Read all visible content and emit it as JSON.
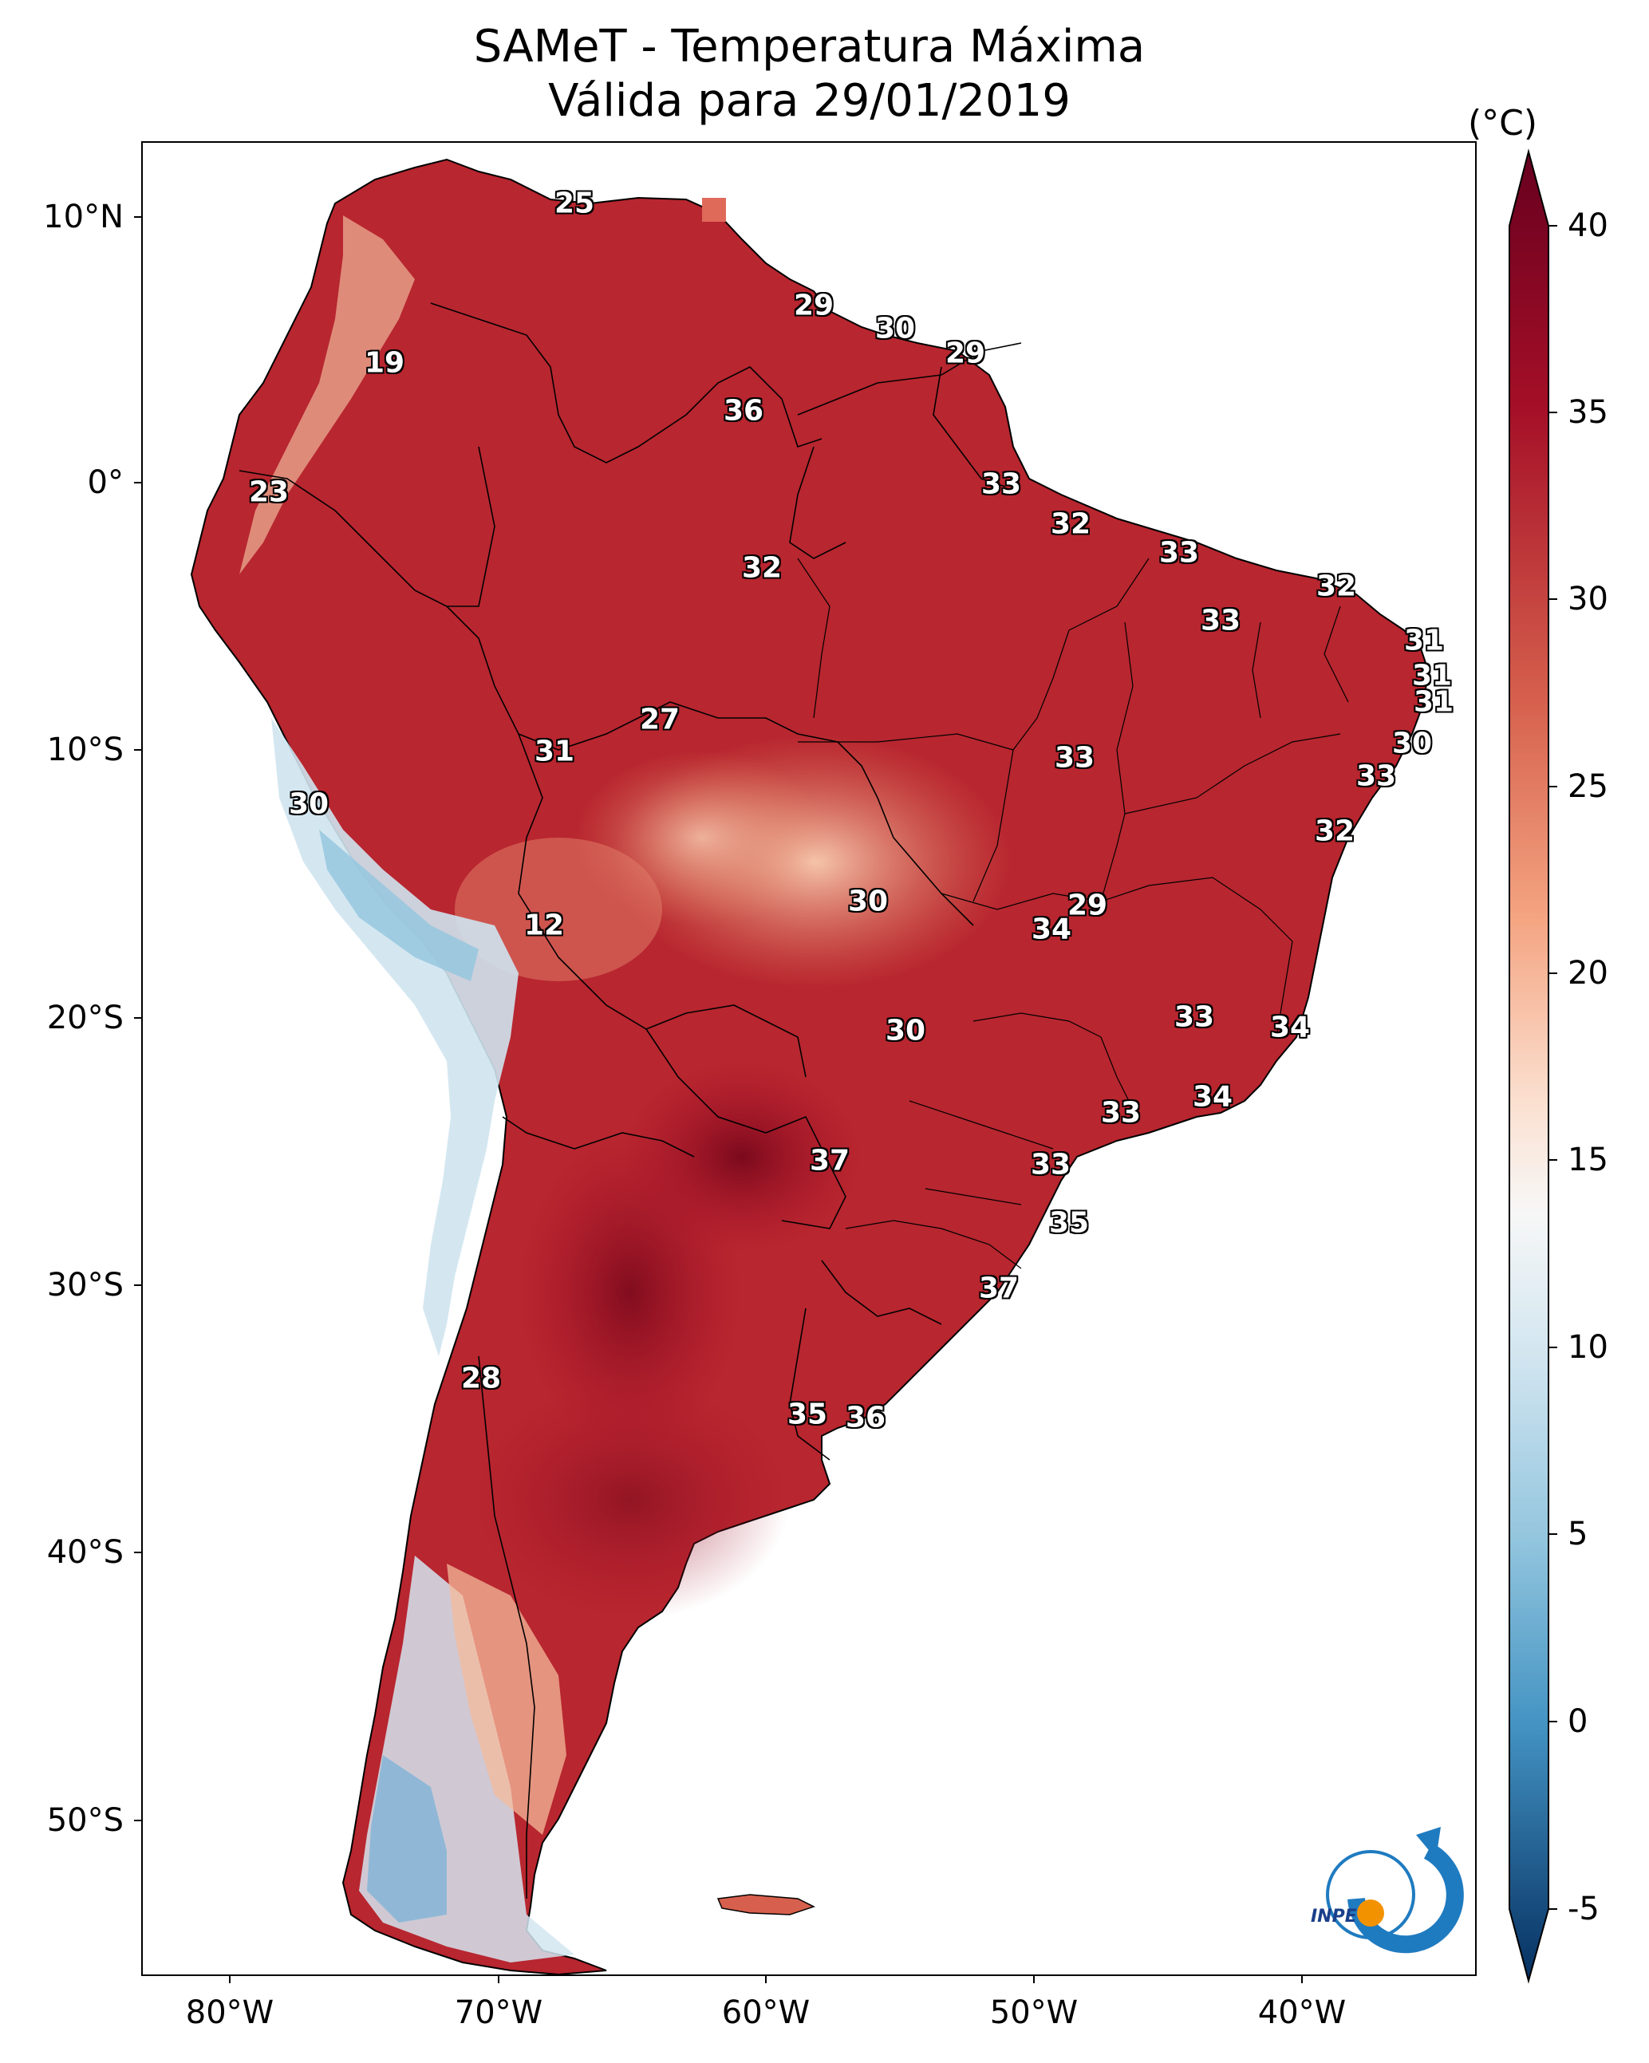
{
  "title": "SAMeT - Temperatura Máxima",
  "subtitle": "Válida para 29/01/2019",
  "colorbar": {
    "unit": "(°C)",
    "ticks": [
      "40",
      "35",
      "30",
      "25",
      "20",
      "15",
      "10",
      "5",
      "0",
      "-5"
    ]
  },
  "axes": {
    "lat_labels": [
      "10°N",
      "0°",
      "10°S",
      "20°S",
      "30°S",
      "40°S",
      "50°S"
    ],
    "lon_labels": [
      "80°W",
      "70°W",
      "60°W",
      "50°W",
      "40°W"
    ]
  },
  "stations": [
    {
      "label": "25"
    },
    {
      "label": "29"
    },
    {
      "label": "30"
    },
    {
      "label": "29"
    },
    {
      "label": "19"
    },
    {
      "label": "36"
    },
    {
      "label": "33"
    },
    {
      "label": "23"
    },
    {
      "label": "32"
    },
    {
      "label": "33"
    },
    {
      "label": "32"
    },
    {
      "label": "32"
    },
    {
      "label": "33"
    },
    {
      "label": "31"
    },
    {
      "label": "31"
    },
    {
      "label": "31"
    },
    {
      "label": "27"
    },
    {
      "label": "31"
    },
    {
      "label": "33"
    },
    {
      "label": "30"
    },
    {
      "label": "33"
    },
    {
      "label": "30"
    },
    {
      "label": "32"
    },
    {
      "label": "12"
    },
    {
      "label": "30"
    },
    {
      "label": "29"
    },
    {
      "label": "34"
    },
    {
      "label": "30"
    },
    {
      "label": "33"
    },
    {
      "label": "34"
    },
    {
      "label": "34"
    },
    {
      "label": "33"
    },
    {
      "label": "37"
    },
    {
      "label": "33"
    },
    {
      "label": "35"
    },
    {
      "label": "37"
    },
    {
      "label": "28"
    },
    {
      "label": "35"
    },
    {
      "label": "36"
    }
  ],
  "logo": {
    "text": "INPE"
  },
  "colors": {
    "hot": "#8b0a1a",
    "warm": "#c0392b",
    "mild": "#f4a582",
    "neutral": "#f7f7f7",
    "cool": "#92c5de",
    "cold": "#2166ac"
  }
}
